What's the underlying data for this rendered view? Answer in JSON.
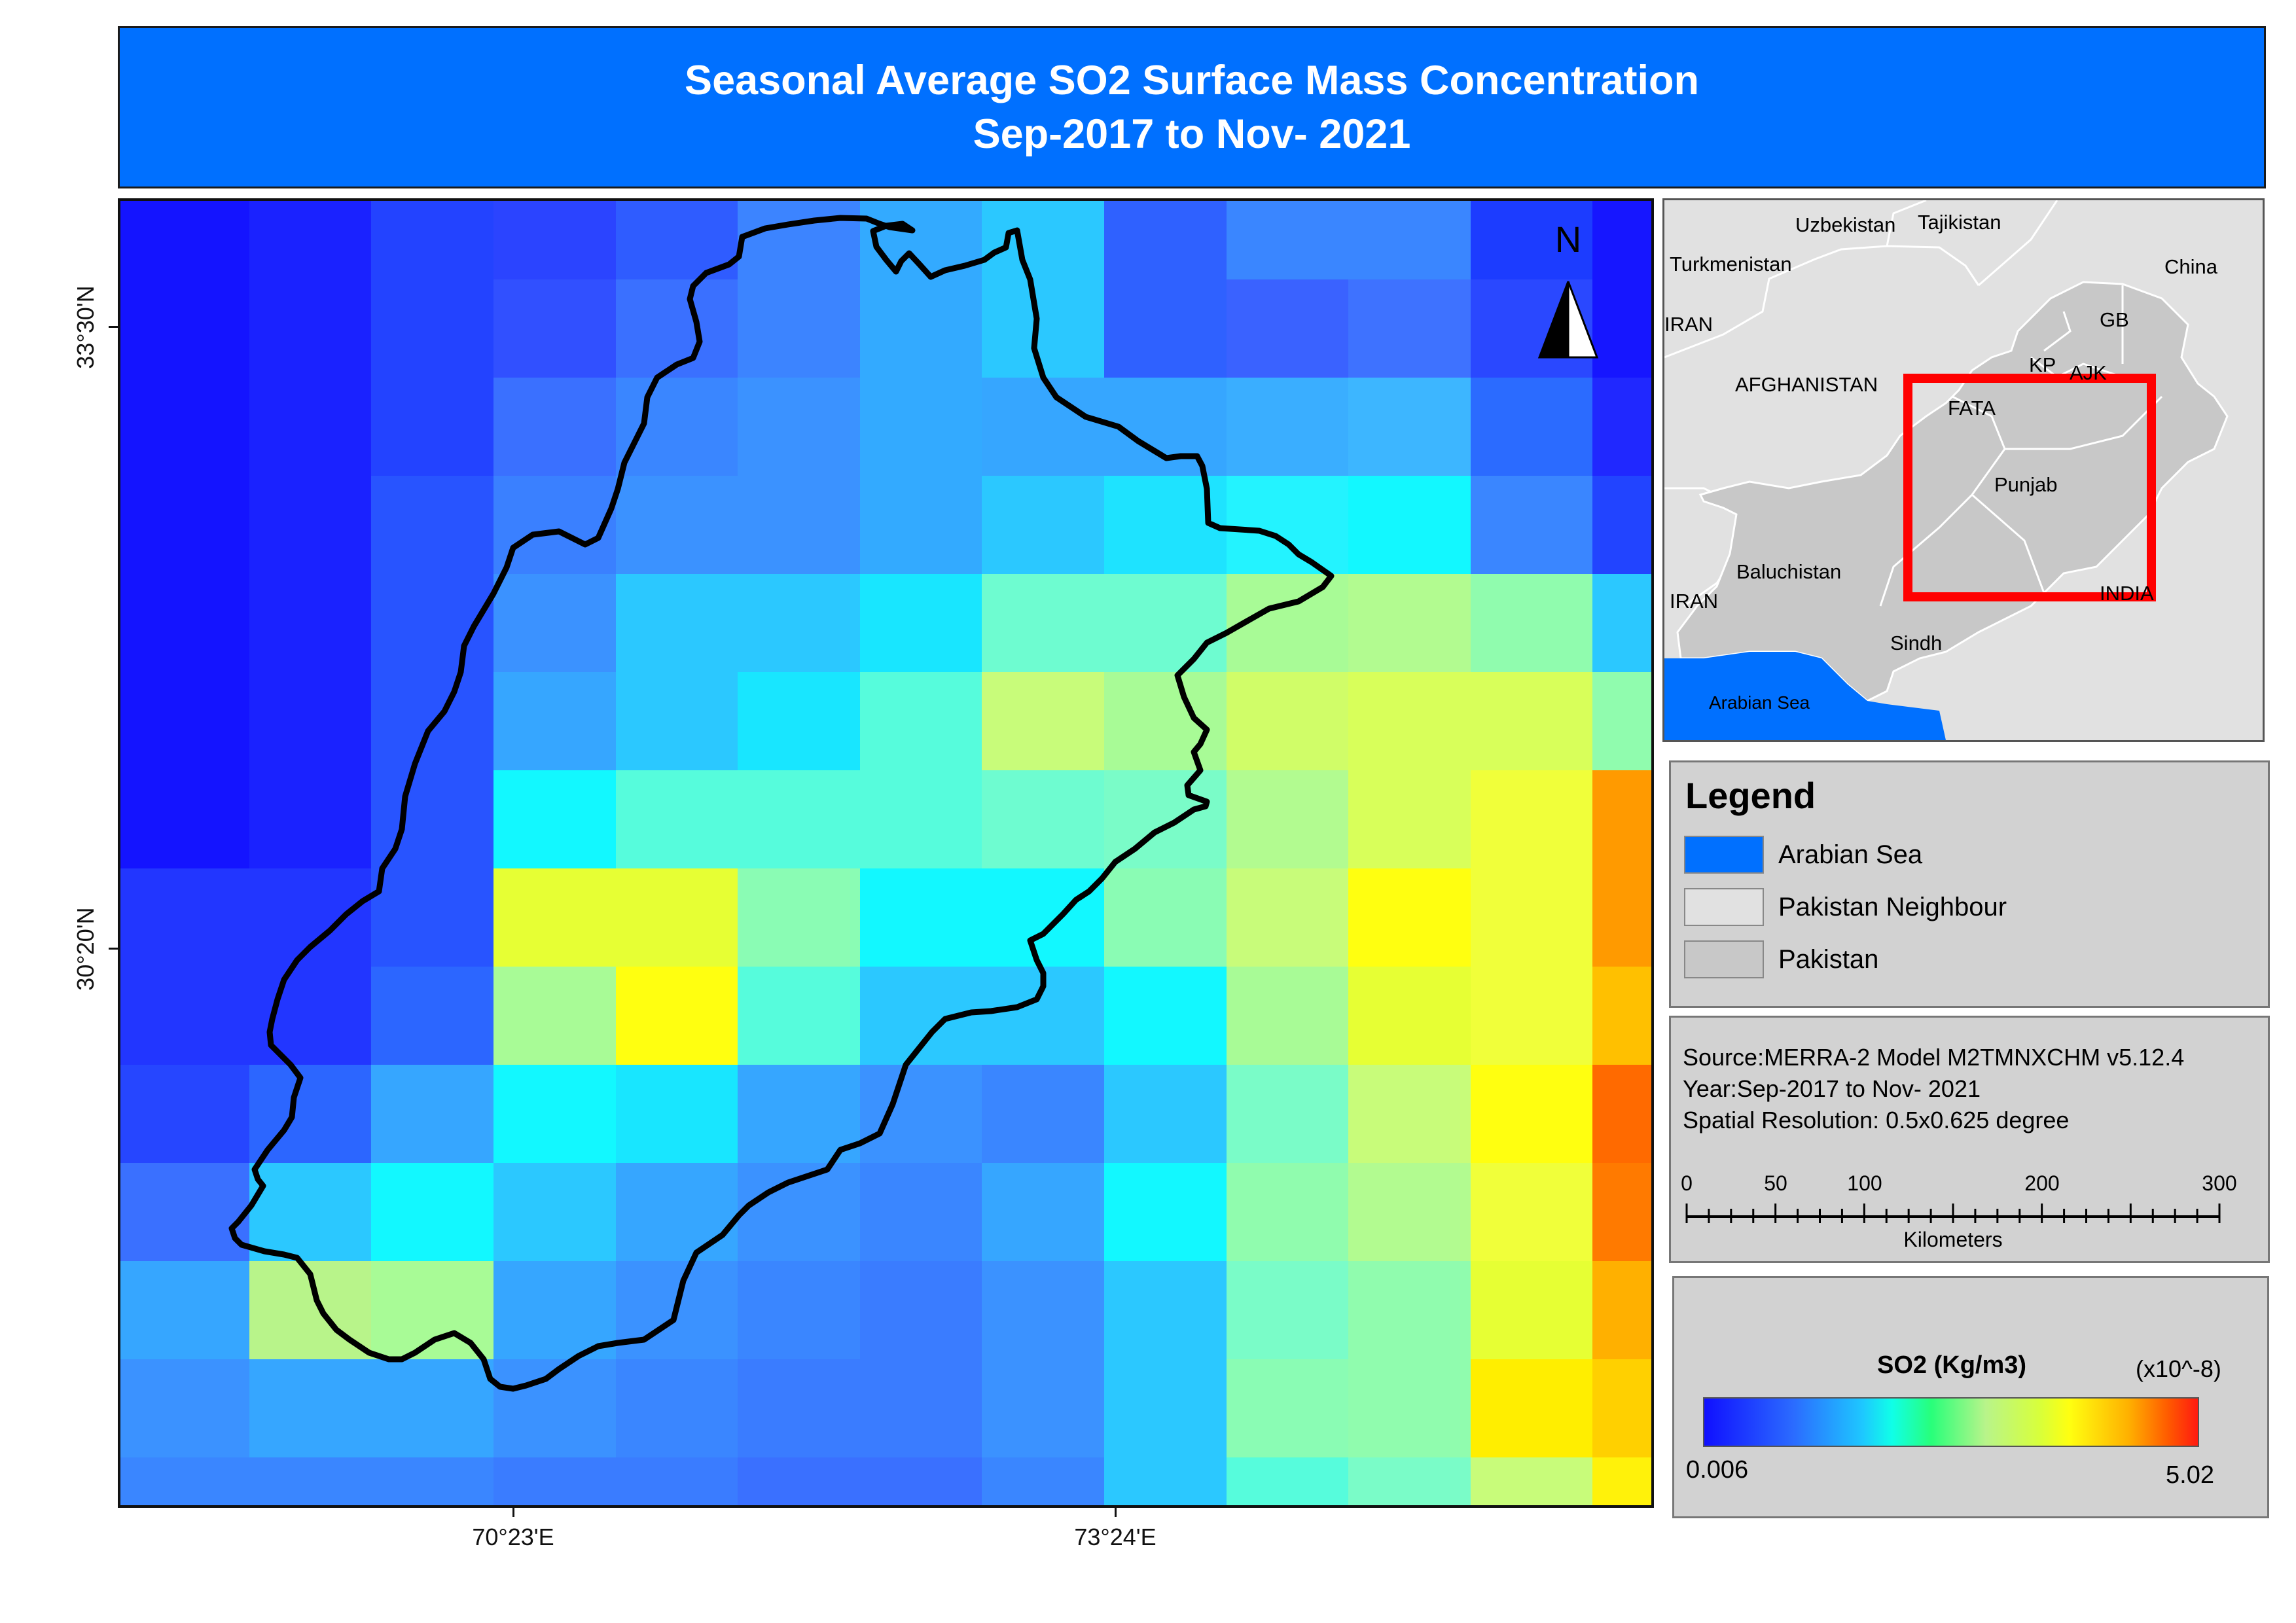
{
  "title": {
    "line1": "Seasonal Average SO2 Surface Mass Concentration",
    "line2": "Sep-2017 to Nov- 2021"
  },
  "map": {
    "north_label": "N",
    "lat_labels": [
      "33°30'N",
      "30°20'N"
    ],
    "lon_labels": [
      "70°23'E",
      "73°24'E"
    ],
    "boundary_color": "#000000",
    "grid_colors": [
      [
        "#1414ff",
        "#1a22ff",
        "#2343ff",
        "#2b44ff",
        "#2f5cff",
        "#3c84ff",
        "#33aaff",
        "#2bc8ff",
        "#2f61ff",
        "#3a86ff",
        "#3a86ff",
        "#1c3cff",
        "#1616ff"
      ],
      [
        "#1414ff",
        "#1a22ff",
        "#2343ff",
        "#3150ff",
        "#3a70ff",
        "#3c84ff",
        "#33aaff",
        "#2bc8ff",
        "#2f61ff",
        "#3a62ff",
        "#3e72ff",
        "#2a48ff",
        "#1616ff"
      ],
      [
        "#1414ff",
        "#1a22ff",
        "#2343ff",
        "#3a70ff",
        "#3a86ff",
        "#3b92ff",
        "#33aaff",
        "#36a6ff",
        "#36a6ff",
        "#3aaeff",
        "#3db6ff",
        "#2b6bff",
        "#2028ff"
      ],
      [
        "#1414ff",
        "#1a22ff",
        "#2854ff",
        "#3a80ff",
        "#3b92ff",
        "#3b92ff",
        "#33aaff",
        "#2bc8ff",
        "#1ee3ff",
        "#23f3ff",
        "#12f8ff",
        "#3a86ff",
        "#2244ff"
      ],
      [
        "#1414ff",
        "#1a22ff",
        "#2854ff",
        "#3b92ff",
        "#2bc8ff",
        "#2bc8ff",
        "#18e6ff",
        "#6efcd0",
        "#6efcd0",
        "#a8fb96",
        "#b2fb90",
        "#90fcae",
        "#2bc8ff"
      ],
      [
        "#1414ff",
        "#1a22ff",
        "#2854ff",
        "#36a6ff",
        "#2bc8ff",
        "#18e6ff",
        "#56fcdc",
        "#c8fc7a",
        "#a8fb96",
        "#d0fd68",
        "#d8ff5a",
        "#d8ff5a",
        "#90fcae"
      ],
      [
        "#1414ff",
        "#1a22ff",
        "#2854ff",
        "#12f8ff",
        "#56fcdc",
        "#56fcdc",
        "#56fcdc",
        "#6efcd0",
        "#7afcc8",
        "#b2fb90",
        "#d8ff5a",
        "#f0ff3a",
        "#ff9a00"
      ],
      [
        "#2236ff",
        "#2236ff",
        "#2854ff",
        "#e6ff34",
        "#e6ff34",
        "#8afcb4",
        "#12f8ff",
        "#12f8ff",
        "#8afcb4",
        "#c8fc7a",
        "#ffff10",
        "#f0ff3a",
        "#ff9a00"
      ],
      [
        "#2236ff",
        "#2236ff",
        "#2c66ff",
        "#a8fb96",
        "#ffff10",
        "#56fcdc",
        "#2bc8ff",
        "#2bc8ff",
        "#12f8ff",
        "#a8fb96",
        "#e6ff34",
        "#f0ff3a",
        "#ffc000"
      ],
      [
        "#2646ff",
        "#2c66ff",
        "#36a6ff",
        "#12f8ff",
        "#18e6ff",
        "#36a6ff",
        "#3b92ff",
        "#3a86ff",
        "#2bc8ff",
        "#7afcc8",
        "#c8fc7a",
        "#ffff10",
        "#ff6a00"
      ],
      [
        "#3a70ff",
        "#2bc8ff",
        "#12f8ff",
        "#2bc8ff",
        "#36a6ff",
        "#3b92ff",
        "#3a86ff",
        "#36a6ff",
        "#12f8ff",
        "#90fcae",
        "#b2fb90",
        "#f0ff3a",
        "#ff7a00"
      ],
      [
        "#36a6ff",
        "#b8f48a",
        "#a8fb96",
        "#36a6ff",
        "#3b92ff",
        "#3a86ff",
        "#3a7cff",
        "#3b92ff",
        "#2bc8ff",
        "#7afcc8",
        "#90fcae",
        "#e6ff34",
        "#ffb000"
      ],
      [
        "#3b92ff",
        "#36a6ff",
        "#36a6ff",
        "#3b92ff",
        "#3a86ff",
        "#3a7cff",
        "#3a7cff",
        "#3b92ff",
        "#2bc8ff",
        "#8afcb4",
        "#90fcae",
        "#ffee00",
        "#ffd000"
      ],
      [
        "#3a86ff",
        "#3a86ff",
        "#3a86ff",
        "#3a7cff",
        "#3a7cff",
        "#3a70ff",
        "#3a70ff",
        "#3a86ff",
        "#2bc8ff",
        "#56fcdc",
        "#7afcc8",
        "#c8fc7a",
        "#fff20a"
      ]
    ]
  },
  "inset": {
    "labels": {
      "uzbekistan": "Uzbekistan",
      "tajikistan": "Tajikistan",
      "turkmenistan": "Turkmenistan",
      "china": "China",
      "iran_north": "IRAN",
      "gb": "GB",
      "kp": "KP",
      "ajk": "AJK",
      "afghanistan": "AFGHANISTAN",
      "fata": "FATA",
      "punjab": "Punjab",
      "baluchistan": "Baluchistan",
      "india": "INDIA",
      "iran_south": "IRAN",
      "sindh": "Sindh",
      "arabian_sea": "Arabian Sea"
    },
    "colors": {
      "neighbour": "#e1e1e1",
      "pakistan": "#c8c8c8",
      "sea": "#0070ff",
      "extent": "#ff0000"
    }
  },
  "legend": {
    "title": "Legend",
    "items": [
      {
        "label": "Arabian Sea",
        "color": "#0070ff"
      },
      {
        "label": "Pakistan Neighbour",
        "color": "#e1e1e1"
      },
      {
        "label": "Pakistan",
        "color": "#c8c8c8"
      }
    ]
  },
  "info": {
    "source": "Source:MERRA-2 Model M2TMNXCHM v5.12.4",
    "year": "Year:Sep-2017 to Nov- 2021",
    "resolution": "Spatial Resolution: 0.5x0.625 degree",
    "scale": {
      "ticks": [
        "0",
        "50",
        "100",
        "200",
        "300"
      ],
      "unit": "Kilometers"
    }
  },
  "colorbar": {
    "title": "SO2 (Kg/m3)",
    "multiplier": "(x10^-8)",
    "min": "0.006",
    "max": "5.02"
  }
}
